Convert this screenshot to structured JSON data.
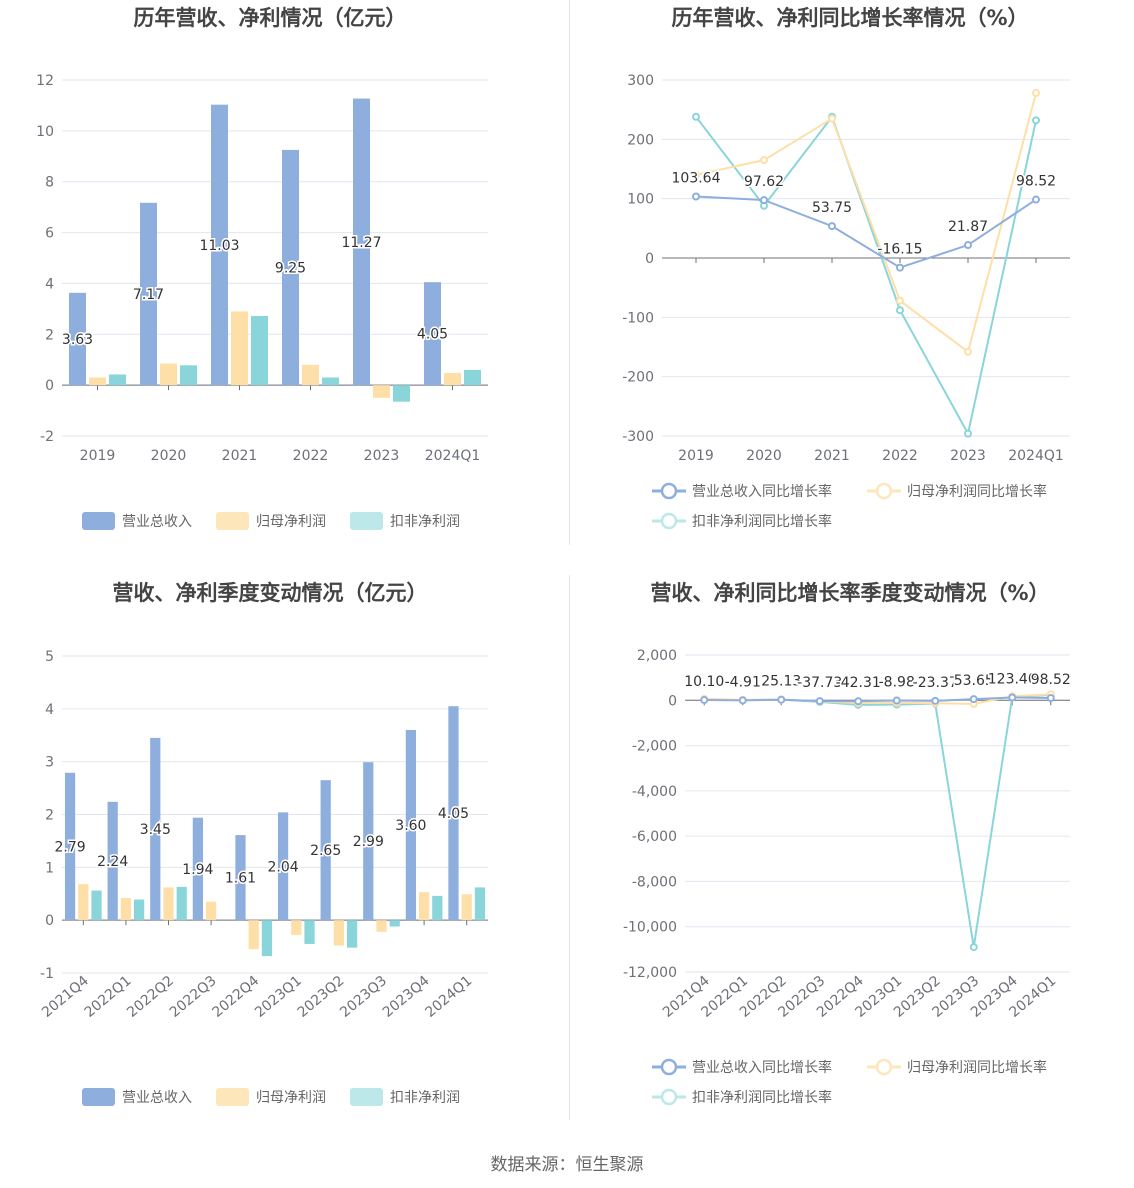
{
  "colors": {
    "revenue": "#8eaedd",
    "parent_profit": "#fedfa8",
    "deducted_profit": "#8ad5d9"
  },
  "footer": {
    "source": "数据来源：恒生聚源"
  },
  "chart_data": [
    {
      "id": "annual",
      "type": "bar",
      "title": "历年营收、净利情况（亿元）",
      "categories": [
        "2019",
        "2020",
        "2021",
        "2022",
        "2023",
        "2024Q1"
      ],
      "ylim": [
        -2,
        12
      ],
      "yticks": [
        -2,
        0,
        2,
        4,
        6,
        8,
        10,
        12
      ],
      "series": [
        {
          "name": "营业总收入",
          "values": [
            3.63,
            7.17,
            11.03,
            9.25,
            11.27,
            4.05
          ],
          "labels": [
            "3.63",
            "7.17",
            "11.03",
            "9.25",
            "11.27",
            "4.05"
          ]
        },
        {
          "name": "归母净利润",
          "values": [
            0.3,
            0.85,
            2.9,
            0.8,
            -0.5,
            0.48
          ]
        },
        {
          "name": "扣非净利润",
          "values": [
            0.42,
            0.78,
            2.72,
            0.3,
            -0.65,
            0.6
          ]
        }
      ],
      "legend": "bottom",
      "grid": true
    },
    {
      "id": "annual_yoy",
      "type": "line",
      "title": "历年营收、净利同比增长率情况（%）",
      "categories": [
        "2019",
        "2020",
        "2021",
        "2022",
        "2023",
        "2024Q1"
      ],
      "ylim": [
        -300,
        300
      ],
      "yticks": [
        -300,
        -200,
        -100,
        0,
        100,
        200,
        300
      ],
      "series": [
        {
          "name": "营业总收入同比增长率",
          "values": [
            103.64,
            97.62,
            53.75,
            -16.15,
            21.87,
            98.52
          ],
          "labels": [
            "103.64",
            "97.62",
            "53.75",
            "-16.15",
            "21.87",
            "98.52"
          ]
        },
        {
          "name": "归母净利润同比增长率",
          "values": [
            140,
            165,
            235,
            -72,
            -158,
            278
          ]
        },
        {
          "name": "扣非净利润同比增长率",
          "values": [
            238,
            88,
            238,
            -88,
            -296,
            232
          ]
        }
      ],
      "legend": "bottom",
      "grid": true
    },
    {
      "id": "quarterly",
      "type": "bar",
      "title": "营收、净利季度变动情况（亿元）",
      "categories": [
        "2021Q4",
        "2022Q1",
        "2022Q2",
        "2022Q3",
        "2022Q4",
        "2023Q1",
        "2023Q2",
        "2023Q3",
        "2023Q4",
        "2024Q1"
      ],
      "ylim": [
        -1,
        5
      ],
      "yticks": [
        -1,
        0,
        1,
        2,
        3,
        4,
        5
      ],
      "series": [
        {
          "name": "营业总收入",
          "values": [
            2.79,
            2.24,
            3.45,
            1.94,
            1.61,
            2.04,
            2.65,
            2.99,
            3.6,
            4.05
          ],
          "labels": [
            "2.79",
            "2.24",
            "3.45",
            "1.94",
            "1.61",
            "2.04",
            "2.65",
            "2.99",
            "3.60",
            "4.05"
          ]
        },
        {
          "name": "归母净利润",
          "values": [
            0.68,
            0.42,
            0.62,
            0.35,
            -0.55,
            -0.28,
            -0.48,
            -0.22,
            0.53,
            0.49
          ]
        },
        {
          "name": "扣非净利润",
          "values": [
            0.56,
            0.39,
            0.63,
            0.0,
            -0.68,
            -0.45,
            -0.52,
            -0.12,
            0.46,
            0.62
          ]
        }
      ],
      "legend": "bottom",
      "grid": true
    },
    {
      "id": "quarterly_yoy",
      "type": "line",
      "title": "营收、净利同比增长率季度变动情况（%）",
      "categories": [
        "2021Q4",
        "2022Q1",
        "2022Q2",
        "2022Q3",
        "2022Q4",
        "2023Q1",
        "2023Q2",
        "2023Q3",
        "2023Q4",
        "2024Q1"
      ],
      "ylim": [
        -12000,
        2000
      ],
      "yticks": [
        -12000,
        -10000,
        -8000,
        -6000,
        -4000,
        -2000,
        0,
        2000
      ],
      "ytick_labels": [
        "-12,000",
        "-10,000",
        "-8,000",
        "-6,000",
        "-4,000",
        "-2,000",
        "0",
        "2,000"
      ],
      "series": [
        {
          "name": "营业总收入同比增长率",
          "values": [
            10.1,
            -4.91,
            25.13,
            -37.73,
            -42.31,
            -8.98,
            -23.37,
            53.65,
            123.4,
            98.52
          ],
          "labels": [
            "10.10",
            "-4.91",
            "25.13",
            "-37.73",
            "-42.31",
            "-8.98",
            "-23.37",
            "53.65",
            "123.40",
            "98.52"
          ]
        },
        {
          "name": "归母净利润同比增长率",
          "values": [
            60,
            20,
            40,
            -50,
            -120,
            -110,
            -130,
            -160,
            180,
            260
          ]
        },
        {
          "name": "扣非净利润同比增长率",
          "values": [
            50,
            10,
            30,
            -70,
            -200,
            -190,
            -150,
            -10900,
            150,
            240
          ]
        }
      ],
      "legend": "bottom",
      "grid": true
    }
  ]
}
